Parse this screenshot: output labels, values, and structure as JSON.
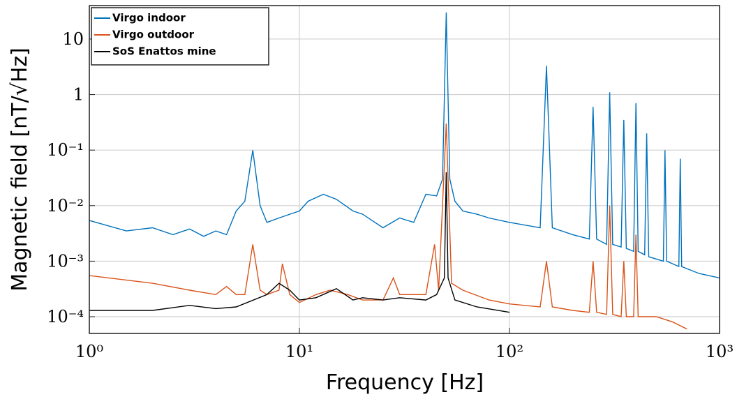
{
  "chart_data": {
    "type": "line",
    "xlabel": "Frequency [Hz]",
    "ylabel": "Magnetic field [nT/√Hz]",
    "xscale": "log",
    "yscale": "log",
    "grid": true,
    "legend": "upper left",
    "xlim": [
      1,
      1000
    ],
    "xticks": [
      {
        "value": 1,
        "label": "10⁰"
      },
      {
        "value": 10,
        "label": "10¹"
      },
      {
        "value": 100,
        "label": "10²"
      },
      {
        "value": 1000,
        "label": "10³"
      }
    ],
    "ylim": [
      5e-05,
      40
    ],
    "yticks": [
      {
        "value": 0.0001,
        "label": "10⁻⁴"
      },
      {
        "value": 0.001,
        "label": "10⁻³"
      },
      {
        "value": 0.01,
        "label": "10⁻²"
      },
      {
        "value": 0.1,
        "label": "10⁻¹"
      },
      1,
      10
    ],
    "series": [
      {
        "name": "Virgo indoor",
        "color": "#0072bd",
        "x": [
          1,
          1.5,
          2,
          2.5,
          3,
          3.5,
          4,
          4.5,
          5,
          5.5,
          6,
          6.5,
          7,
          8,
          9,
          10,
          11,
          13,
          15,
          18,
          20,
          25,
          30,
          35,
          40,
          45,
          48,
          50,
          52,
          55,
          60,
          70,
          80,
          100,
          140,
          150,
          160,
          200,
          240,
          250,
          260,
          290,
          300,
          310,
          340,
          350,
          360,
          390,
          400,
          410,
          440,
          450,
          460,
          540,
          550,
          560,
          640,
          650,
          660,
          800,
          1000
        ],
        "values": [
          0.0054,
          0.0035,
          0.004,
          0.003,
          0.0038,
          0.0028,
          0.0035,
          0.003,
          0.008,
          0.012,
          0.1,
          0.01,
          0.005,
          0.006,
          0.007,
          0.008,
          0.012,
          0.016,
          0.013,
          0.008,
          0.007,
          0.004,
          0.006,
          0.005,
          0.016,
          0.015,
          0.03,
          30,
          0.03,
          0.012,
          0.008,
          0.007,
          0.006,
          0.005,
          0.004,
          3.3,
          0.004,
          0.003,
          0.0025,
          0.6,
          0.0025,
          0.002,
          1.1,
          0.002,
          0.0018,
          0.35,
          0.0017,
          0.0015,
          0.7,
          0.0015,
          0.0013,
          0.2,
          0.0012,
          0.001,
          0.1,
          0.001,
          0.0008,
          0.07,
          0.0008,
          0.0006,
          0.0005
        ]
      },
      {
        "name": "Virgo outdoor",
        "color": "#d95319",
        "x": [
          1,
          2,
          3,
          4,
          4.5,
          5,
          5.5,
          6,
          6.5,
          7,
          8,
          8.3,
          9,
          10,
          12,
          14,
          17,
          20,
          25,
          28,
          30,
          40,
          44,
          46,
          50,
          53,
          60,
          80,
          100,
          140,
          150,
          160,
          200,
          240,
          250,
          260,
          290,
          300,
          310,
          340,
          350,
          360,
          390,
          400,
          410,
          500,
          600,
          700
        ],
        "values": [
          0.00055,
          0.0004,
          0.0003,
          0.00025,
          0.00035,
          0.00025,
          0.00025,
          0.002,
          0.0003,
          0.00025,
          0.0003,
          0.0009,
          0.00025,
          0.00018,
          0.00025,
          0.0003,
          0.00025,
          0.0002,
          0.0002,
          0.0005,
          0.00025,
          0.00025,
          0.002,
          0.0003,
          0.3,
          0.0004,
          0.0003,
          0.0002,
          0.00017,
          0.00015,
          0.001,
          0.00015,
          0.00013,
          0.00012,
          0.001,
          0.00012,
          0.00011,
          0.01,
          0.00011,
          0.0001,
          0.001,
          0.0001,
          0.0001,
          0.003,
          0.0001,
          0.0001,
          8e-05,
          6e-05
        ]
      },
      {
        "name": "SoS Enattos mine",
        "color": "#000000",
        "x": [
          1,
          2,
          3,
          4,
          5,
          7,
          8,
          9,
          10,
          12,
          15,
          18,
          20,
          25,
          30,
          40,
          45,
          49,
          50,
          51,
          55,
          70,
          100
        ],
        "values": [
          0.00013,
          0.00013,
          0.00016,
          0.00014,
          0.00015,
          0.00025,
          0.0004,
          0.0003,
          0.0002,
          0.00022,
          0.00032,
          0.0002,
          0.00022,
          0.0002,
          0.00022,
          0.0002,
          0.00025,
          0.0005,
          0.04,
          0.0005,
          0.0002,
          0.00015,
          0.00012
        ]
      }
    ]
  }
}
